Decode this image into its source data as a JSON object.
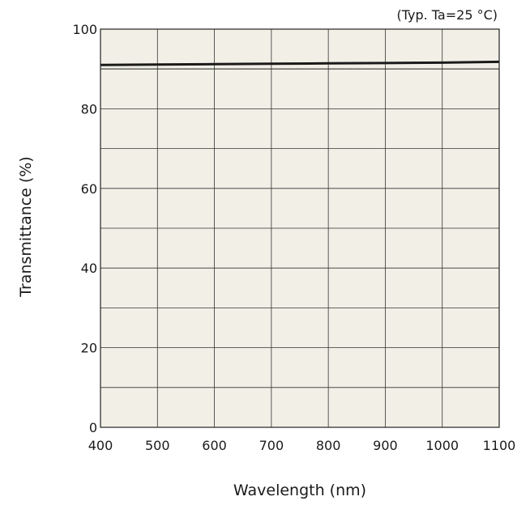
{
  "chart_data": {
    "type": "line",
    "annotation": "(Typ. Ta=25 °C)",
    "xlabel": "Wavelength (nm)",
    "ylabel": "Transmittance (%)",
    "xlim": [
      400,
      1100
    ],
    "ylim": [
      0,
      100
    ],
    "x_ticks": [
      400,
      500,
      600,
      700,
      800,
      900,
      1000,
      1100
    ],
    "x_tick_labels": [
      "400",
      "500",
      "600",
      "700",
      "800",
      "900",
      "1000",
      "1100"
    ],
    "y_ticks": [
      0,
      20,
      40,
      60,
      80,
      100
    ],
    "y_tick_labels": [
      "0",
      "20",
      "40",
      "60",
      "80",
      "100"
    ],
    "y_minor_gridlines": [
      10,
      30,
      50,
      70,
      90
    ],
    "grid": true,
    "reference_line_y": 90,
    "series": [
      {
        "x": [
          400,
          500,
          600,
          700,
          800,
          900,
          1000,
          1100
        ],
        "y": [
          91.0,
          91.1,
          91.2,
          91.3,
          91.4,
          91.5,
          91.6,
          91.8
        ]
      }
    ],
    "colors": {
      "plot_background": "#f1efe6",
      "grid": "#333333",
      "series": "#1a1a1a"
    }
  }
}
